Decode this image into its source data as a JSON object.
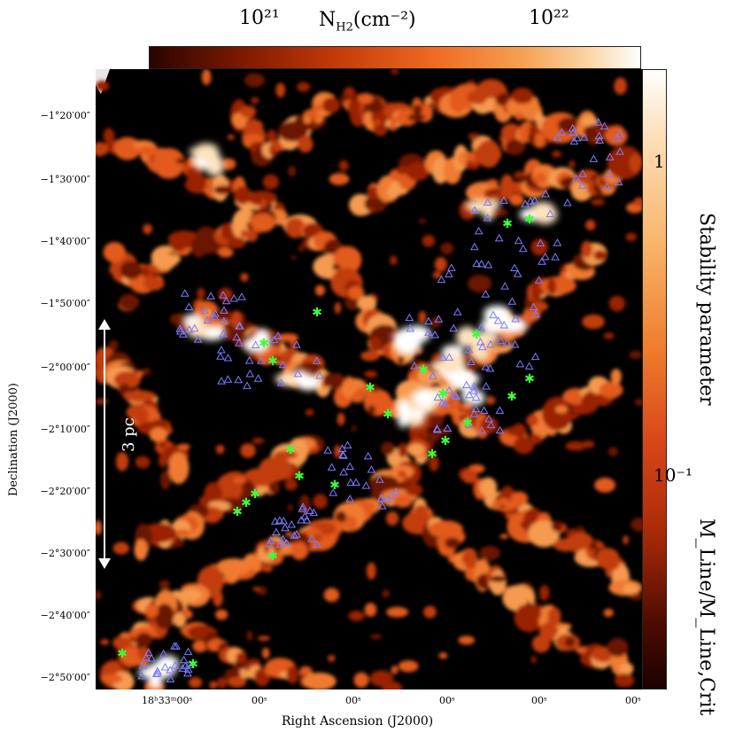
{
  "colorbar_top": {
    "tick_labels": [
      "10²¹",
      "10²²"
    ],
    "title": "N_H2(cm⁻²)",
    "title_base": "N",
    "title_sub": "H2",
    "title_unit": "(cm⁻²)"
  },
  "colorbar_side": {
    "tick_labels": [
      "1",
      "10⁻¹"
    ],
    "label": "Stability parameter",
    "label_sub_text": "M_Line/M_Line,Crit"
  },
  "axes": {
    "ylabel": "Declination (J2000)",
    "xlabel": "Right Ascension (J2000)",
    "y_ticks": [
      "−1°20′00″",
      "−1°30′00″",
      "−1°40′00″",
      "−1°50′00″",
      "−2°00′00″",
      "−2°10′00″",
      "−2°20′00″",
      "−2°30′00″",
      "−2°40′00″",
      "−2°50′00″"
    ],
    "x_ticks": [
      "18ʰ33ᵐ00ˢ",
      "00ˢ",
      "00ˢ",
      "00ˢ",
      "00ˢ",
      "00ˢ",
      "00ˢ"
    ]
  },
  "scale_bar": {
    "label": "3 pc"
  },
  "colors": {
    "background": "#000000",
    "filament_low": "#7a1800",
    "filament_mid": "#ef6a22",
    "filament_high": "#ffffff",
    "triangle_marker": "#7b7bff",
    "star_marker": "#3cff3c"
  }
}
